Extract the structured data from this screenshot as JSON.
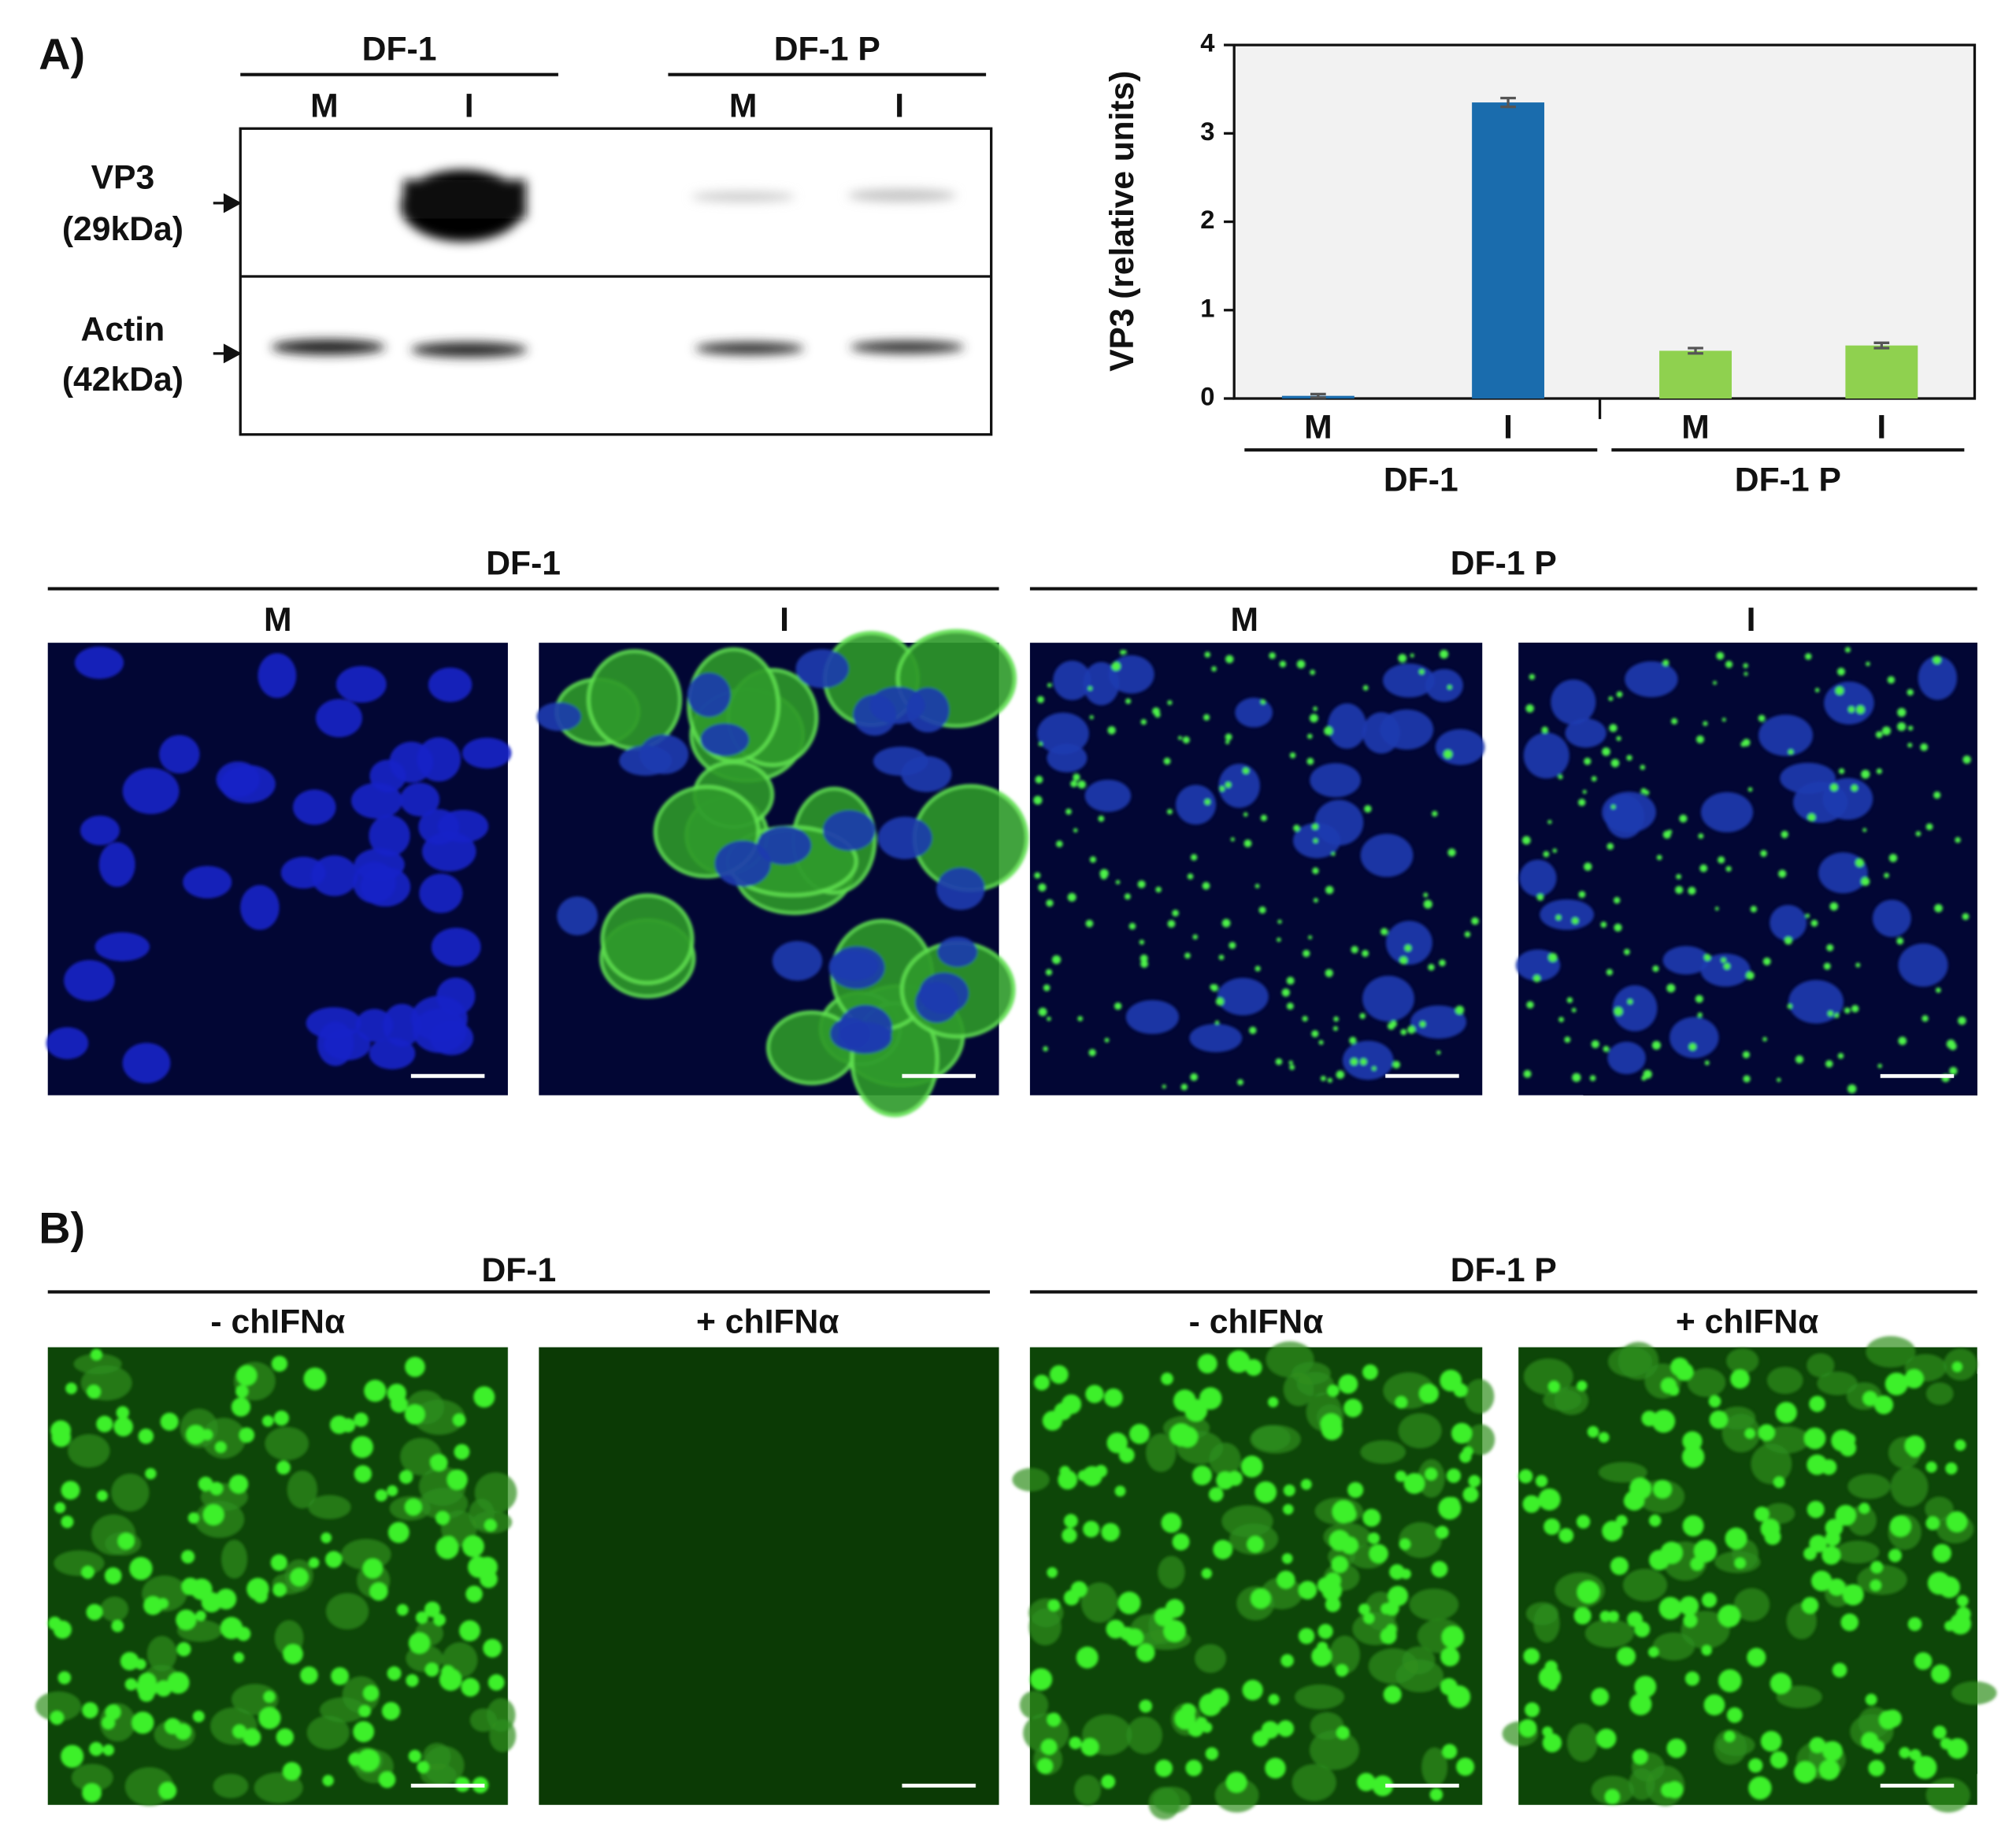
{
  "panel_a": {
    "label": "A)",
    "blot": {
      "groups": [
        "DF-1",
        "DF-1 P"
      ],
      "lanes": [
        "M",
        "I",
        "M",
        "I"
      ],
      "rows": [
        {
          "name": "VP3",
          "size": "(29kDa)"
        },
        {
          "name": "Actin",
          "size": "(42kDa)"
        }
      ]
    },
    "microscopy": {
      "groups": [
        "DF-1",
        "DF-1 P"
      ],
      "panels": [
        "M",
        "I",
        "M",
        "I"
      ]
    }
  },
  "chart_data": {
    "type": "bar",
    "y_label": "VP3 (relative units)",
    "categories": [
      "M",
      "I",
      "M",
      "I"
    ],
    "groups": [
      "DF-1",
      "DF-1 P"
    ],
    "values": [
      0.03,
      3.35,
      0.54,
      0.6
    ],
    "errors": [
      0.02,
      0.05,
      0.03,
      0.03
    ],
    "colors": [
      "#1a6cad",
      "#1a6cad",
      "#8fd14f",
      "#8fd14f"
    ],
    "ylim": [
      0,
      4
    ],
    "yticks": [
      0,
      1,
      2,
      3,
      4
    ]
  },
  "panel_b": {
    "label": "B)",
    "groups": [
      "DF-1",
      "DF-1 P"
    ],
    "panels": [
      "- chIFNα",
      "+ chIFNα",
      "- chIFNα",
      "+ chIFNα"
    ]
  }
}
